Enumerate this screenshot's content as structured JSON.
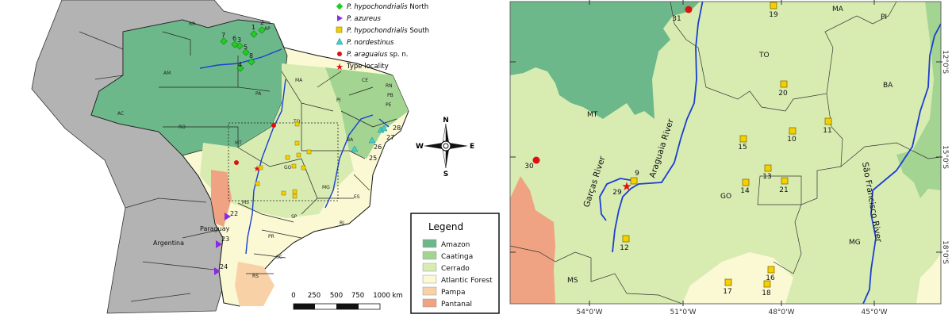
{
  "colors": {
    "amazon": "#6db88a",
    "caatinga": "#a3d492",
    "cerrado": "#d8ecb2",
    "atlantic_forest": "#fbf8d4",
    "pampa": "#f8d2a6",
    "pantanal": "#f0a383",
    "other_countries": "#b3b3b3",
    "river": "#1a3fd0"
  },
  "species_legend": [
    {
      "italic": "P. hypochondrialis",
      "suffix": " North",
      "marker": "green-diamond",
      "color": "#22cc22"
    },
    {
      "italic": "P. azureus",
      "suffix": "",
      "marker": "purple-triangle",
      "color": "#8a2be2"
    },
    {
      "italic": "P. hypochondrialis",
      "suffix": " South",
      "marker": "yellow-square",
      "color": "#f5d000"
    },
    {
      "italic": "P. nordestinus",
      "suffix": "",
      "marker": "cyan-triangle",
      "color": "#40d0d0"
    },
    {
      "italic": "P. araguaius",
      "suffix": " sp. n.",
      "marker": "red-circle",
      "color": "#dd1111"
    },
    {
      "italic": "",
      "suffix": "Type locality",
      "marker": "red-star",
      "color": "#dd1111"
    }
  ],
  "biome_legend": {
    "title": "Legend",
    "items": [
      "Amazon",
      "Caatinga",
      "Cerrado",
      "Atlantic Forest",
      "Pampa",
      "Pantanal"
    ]
  },
  "scale_bar": {
    "labels": [
      "0",
      "250",
      "500",
      "750",
      "1000 km"
    ]
  },
  "compass": {
    "n": "N",
    "s": "S",
    "e": "E",
    "w": "W"
  },
  "overview_map": {
    "countries": [
      "Paraguay",
      "Argentina"
    ],
    "states": [
      "RR",
      "AP",
      "AM",
      "PA",
      "AC",
      "RO",
      "MA",
      "CE",
      "RN",
      "PB",
      "PE",
      "PI",
      "TO",
      "BA",
      "MT",
      "GO",
      "MG",
      "ES",
      "MS",
      "SP",
      "RJ",
      "PR",
      "SC",
      "RS"
    ],
    "point_labels": [
      "1",
      "2",
      "3",
      "4",
      "5",
      "6",
      "7",
      "8",
      "22",
      "23",
      "24",
      "25",
      "26",
      "27",
      "28"
    ]
  },
  "detail_map": {
    "states": [
      "MA",
      "PI",
      "TO",
      "BA",
      "MT",
      "GO",
      "MG",
      "MS"
    ],
    "rivers": [
      "Araguaia River",
      "Garças River",
      "São Francisco River"
    ],
    "point_labels": [
      "31",
      "19",
      "20",
      "11",
      "10",
      "15",
      "13",
      "14",
      "21",
      "9",
      "29",
      "30",
      "12",
      "16",
      "17",
      "18"
    ],
    "x_ticks": [
      "54°0'W",
      "51°0'W",
      "48°0'W",
      "45°0'W"
    ],
    "y_ticks": [
      "12°0'S",
      "15°0'S",
      "18°0'S"
    ]
  }
}
